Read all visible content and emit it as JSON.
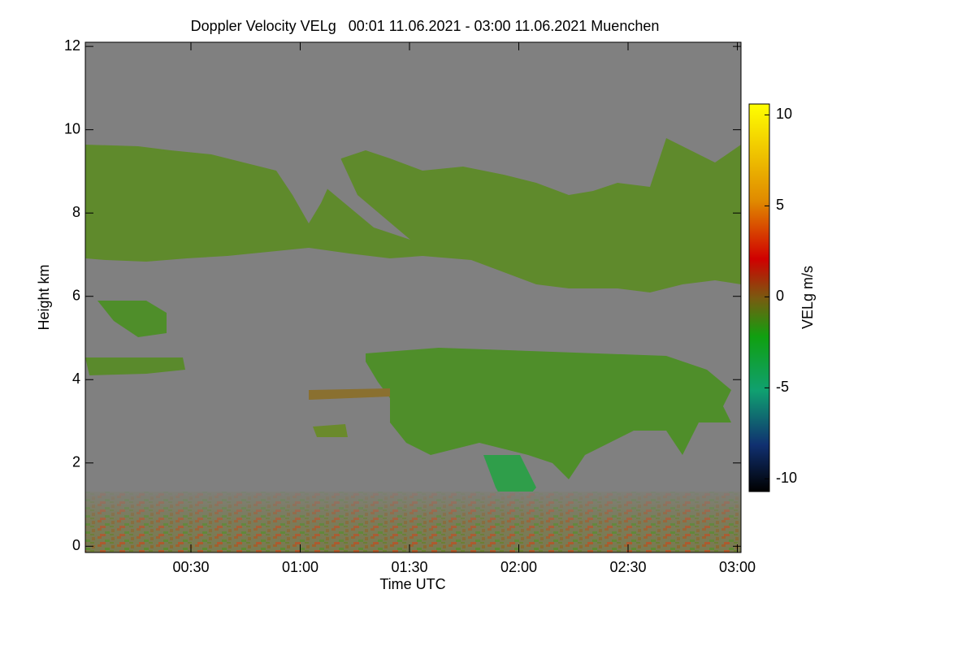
{
  "chart_data": {
    "type": "heatmap",
    "title": "Doppler Velocity VELg   00:01 11.06.2021 - 03:00 11.06.2021 Muenchen",
    "x_label": "Time UTC",
    "y_label": "Height km",
    "colorbar_label": "VELg m/s",
    "xlim": [
      0.0167,
      3.0167
    ],
    "xticks": [
      {
        "value": 0.5,
        "label": "00:30"
      },
      {
        "value": 1,
        "label": "01:00"
      },
      {
        "value": 1.5,
        "label": "01:30"
      },
      {
        "value": 2,
        "label": "02:00"
      },
      {
        "value": 2.5,
        "label": "02:30"
      },
      {
        "value": 3,
        "label": "03:00"
      }
    ],
    "ylim": [
      -0.15,
      12.1
    ],
    "yticks": [
      0,
      2,
      4,
      6,
      8,
      10,
      12
    ],
    "zlim": [
      -10.7,
      10.6
    ],
    "zticks": [
      -10,
      -5,
      0,
      5,
      10
    ]
  }
}
